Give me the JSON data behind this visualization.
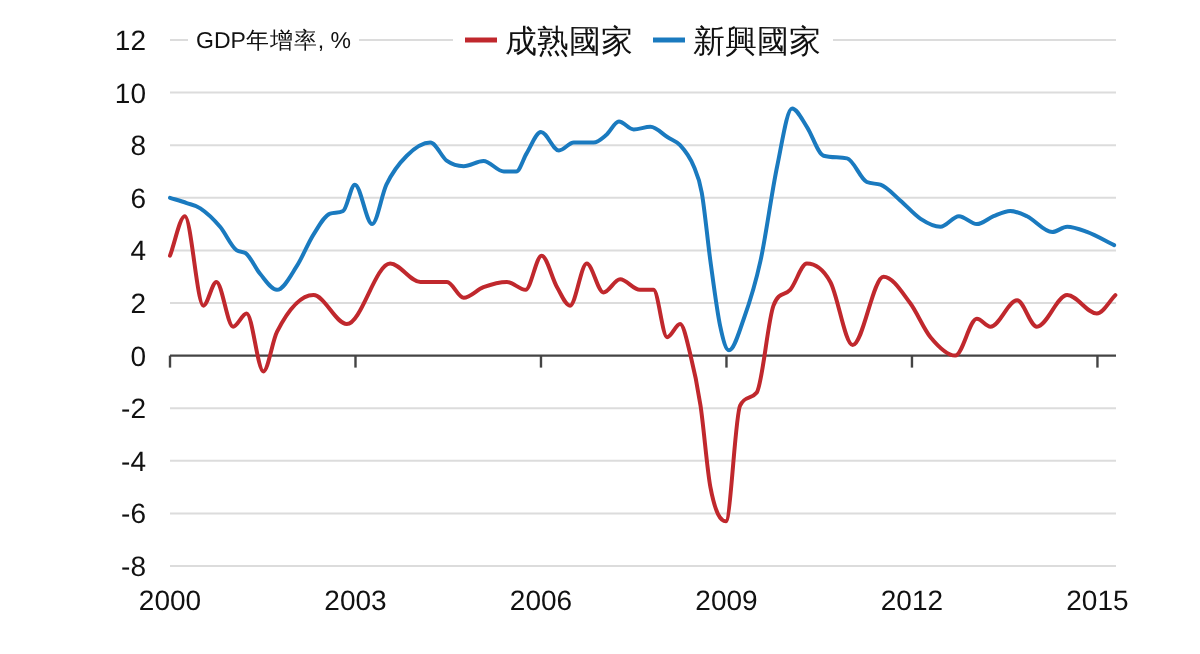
{
  "chart_data": {
    "type": "line",
    "ylabel": "GDP年增率, %",
    "legend": "top",
    "grid": "y",
    "line_style": "solid",
    "marker": "none",
    "xlim": [
      2000,
      2015.3
    ],
    "xticks": [
      2000,
      2003,
      2006,
      2009,
      2012,
      2015
    ],
    "ylim": [
      -8,
      12
    ],
    "yticks": [
      -8,
      -6,
      -4,
      -2,
      0,
      2,
      4,
      6,
      8,
      10,
      12
    ],
    "series": [
      {
        "name": "成熟國家",
        "color": "#c0282d",
        "x": [
          2000.0,
          2000.24,
          2000.54,
          2000.75,
          2001.02,
          2001.24,
          2001.51,
          2001.73,
          2002.32,
          2002.86,
          2003.56,
          2004.05,
          2004.48,
          2004.75,
          2005.07,
          2005.45,
          2005.75,
          2006.01,
          2006.26,
          2006.47,
          2006.74,
          2007.01,
          2007.28,
          2007.6,
          2007.82,
          2008.04,
          2008.25,
          2008.41,
          2008.58,
          2008.74,
          2008.99,
          2009.22,
          2009.49,
          2009.76,
          2010.03,
          2010.3,
          2010.68,
          2011.04,
          2011.54,
          2011.97,
          2012.3,
          2012.7,
          2013.05,
          2013.27,
          2013.7,
          2014.02,
          2014.51,
          2014.99,
          2015.29
        ],
        "values": [
          3.8,
          5.3,
          1.9,
          2.8,
          1.1,
          1.6,
          -0.6,
          0.9,
          2.3,
          1.2,
          3.5,
          2.8,
          2.8,
          2.2,
          2.6,
          2.8,
          2.5,
          3.8,
          2.6,
          1.9,
          3.5,
          2.4,
          2.9,
          2.5,
          2.5,
          0.7,
          1.2,
          0.1,
          -1.9,
          -5.0,
          -6.3,
          -1.9,
          -1.4,
          1.9,
          2.5,
          3.5,
          2.8,
          0.4,
          3.0,
          2.0,
          0.7,
          0.0,
          1.4,
          1.1,
          2.1,
          1.1,
          2.3,
          1.6,
          2.3
        ]
      },
      {
        "name": "新興國家",
        "color": "#1a7abf",
        "x": [
          2000.0,
          2000.27,
          2000.49,
          2000.81,
          2001.08,
          2001.22,
          2001.46,
          2001.73,
          2002.05,
          2002.32,
          2002.59,
          2002.8,
          2002.99,
          2003.27,
          2003.5,
          2003.83,
          2004.21,
          2004.48,
          2004.75,
          2005.07,
          2005.4,
          2005.6,
          2005.77,
          2006.0,
          2006.29,
          2006.53,
          2006.85,
          2007.06,
          2007.26,
          2007.5,
          2007.77,
          2008.05,
          2008.25,
          2008.47,
          2008.6,
          2008.74,
          2008.9,
          2009.04,
          2009.28,
          2009.55,
          2009.82,
          2010.06,
          2010.3,
          2010.57,
          2010.95,
          2011.27,
          2011.49,
          2011.81,
          2012.14,
          2012.46,
          2012.76,
          2013.05,
          2013.32,
          2013.59,
          2013.86,
          2014.27,
          2014.51,
          2014.83,
          2015.27
        ],
        "values": [
          6.0,
          5.8,
          5.6,
          4.9,
          4.0,
          3.9,
          3.1,
          2.5,
          3.4,
          4.6,
          5.4,
          5.5,
          6.5,
          5.0,
          6.5,
          7.6,
          8.1,
          7.4,
          7.2,
          7.4,
          7.0,
          7.0,
          7.7,
          8.5,
          7.8,
          8.1,
          8.1,
          8.4,
          8.9,
          8.6,
          8.7,
          8.3,
          8.0,
          7.2,
          6.2,
          3.6,
          1.1,
          0.2,
          1.4,
          3.6,
          7.2,
          9.4,
          8.7,
          7.6,
          7.5,
          6.6,
          6.5,
          5.9,
          5.2,
          4.9,
          5.3,
          5.0,
          5.3,
          5.5,
          5.3,
          4.7,
          4.9,
          4.7,
          4.2
        ]
      }
    ]
  }
}
